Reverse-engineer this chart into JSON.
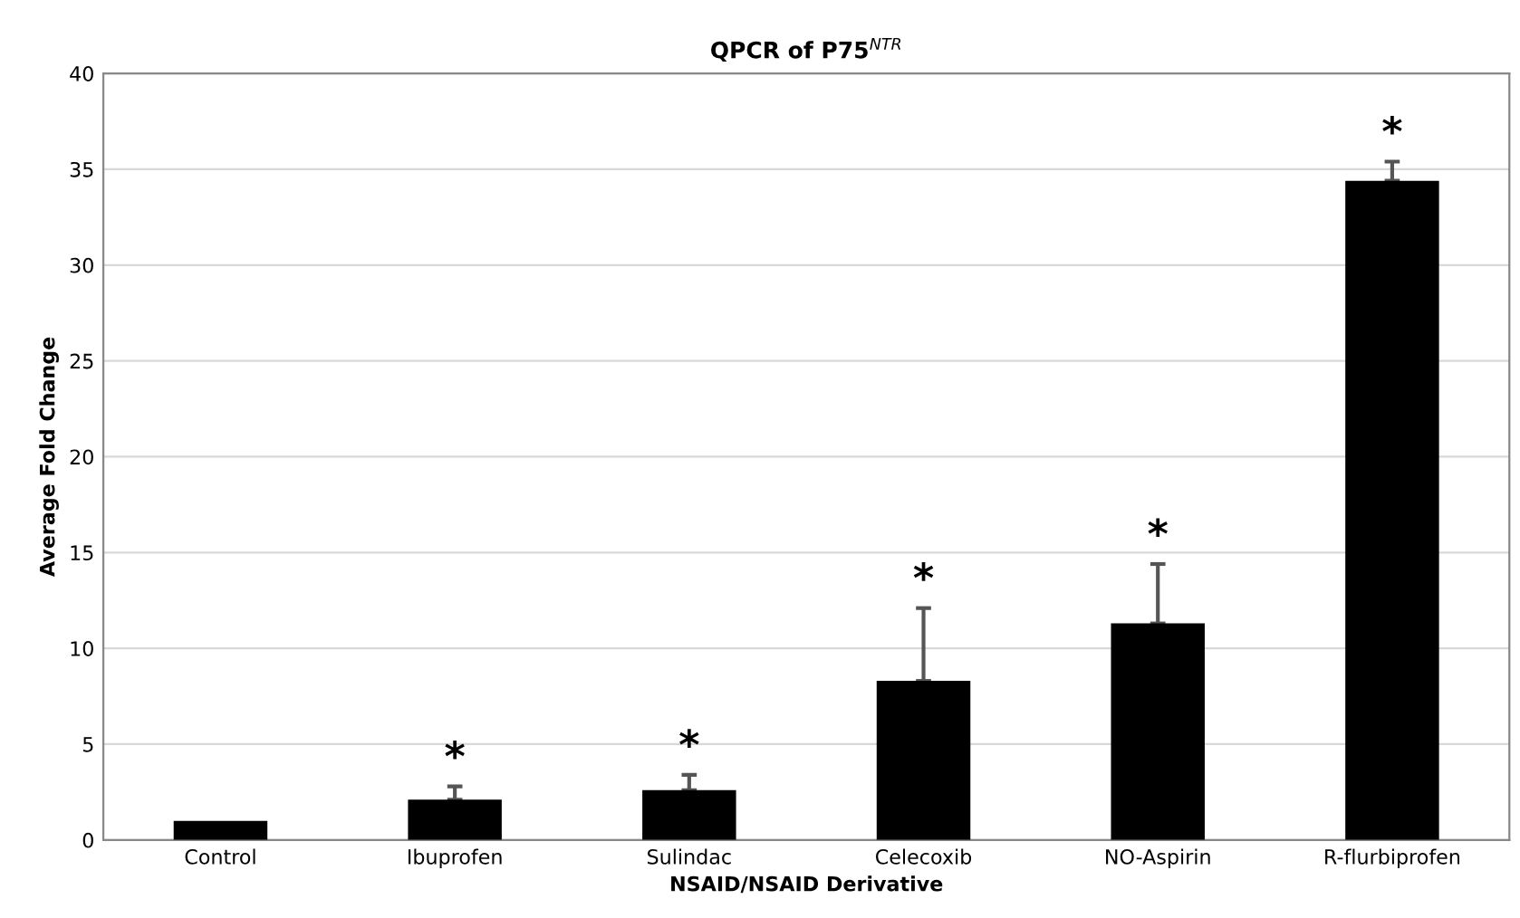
{
  "chart_data": {
    "type": "bar",
    "title": "QPCR of P75$^{NTR}$",
    "xlabel": "NSAID/NSAID Derivative",
    "ylabel": "Average Fold Change",
    "categories": [
      "Control",
      "Ibuprofen",
      "Sulindac",
      "Celecoxib",
      "NO-Aspirin",
      "R-flurbiprofen"
    ],
    "values": [
      1.0,
      2.1,
      2.6,
      8.3,
      11.3,
      34.4
    ],
    "value_labels": [
      null,
      "*",
      "*",
      "*",
      "*",
      "*"
    ],
    "errors": [
      null,
      [
        2.1,
        2.8
      ],
      [
        2.6,
        3.4
      ],
      [
        8.3,
        12.1
      ],
      [
        11.3,
        14.4
      ],
      [
        34.4,
        35.4
      ]
    ],
    "color": "#000000",
    "ylim": [
      0,
      40
    ],
    "yticks": [
      0,
      5,
      10,
      15,
      20,
      25,
      30,
      35,
      40
    ],
    "grid": "y"
  }
}
